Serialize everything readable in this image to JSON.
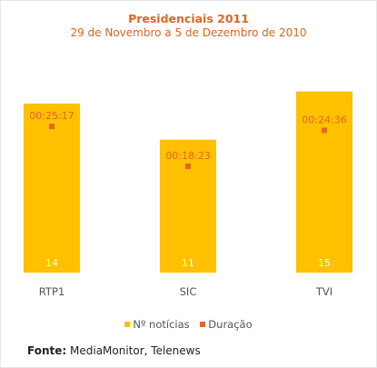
{
  "chart_data": {
    "type": "bar",
    "title": "Presidenciais 2011",
    "subtitle": "29 de Novembro a 5 de Dezembro de 2010",
    "categories": [
      "RTP1",
      "SIC",
      "TVI"
    ],
    "series": [
      {
        "name": "Nº notícias",
        "type": "bar",
        "values": [
          14,
          11,
          15
        ],
        "color": "#ffc000"
      },
      {
        "name": "Duração",
        "type": "marker",
        "values": [
          "00:25:17",
          "00:18:23",
          "00:24:36"
        ],
        "values_minutes": [
          25.28,
          18.38,
          24.6
        ],
        "color": "#e8641f"
      }
    ],
    "bar_ylim": [
      0,
      15.8
    ],
    "duration_ylim_minutes": [
      0,
      33
    ],
    "grid": false,
    "legend_position": "bottom"
  },
  "source": {
    "label": "Fonte:",
    "text": "MediaMonitor, Telenews"
  },
  "colors": {
    "bar": "#ffc000",
    "marker": "#e8641f",
    "title": "#e8641f",
    "axis_label": "#555555"
  }
}
